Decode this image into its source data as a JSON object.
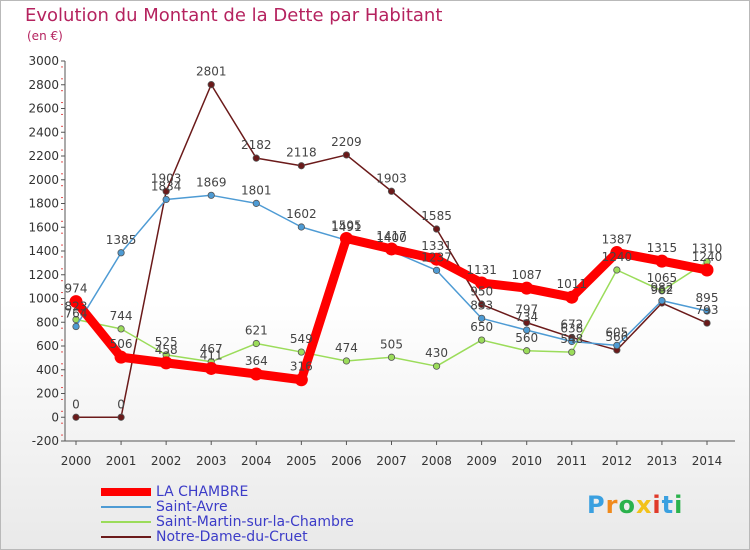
{
  "chart_data": {
    "type": "line",
    "title": "Evolution du Montant de la Dette par Habitant",
    "unit_label": "(en €)",
    "xlabel": "",
    "ylabel": "",
    "ylim": [
      -200,
      3000
    ],
    "y_ticks": [
      -200,
      0,
      200,
      400,
      600,
      800,
      1000,
      1200,
      1400,
      1600,
      1800,
      2000,
      2200,
      2400,
      2600,
      2800,
      3000
    ],
    "categories": [
      "2000",
      "2001",
      "2002",
      "2003",
      "2004",
      "2005",
      "2006",
      "2007",
      "2008",
      "2009",
      "2010",
      "2011",
      "2012",
      "2013",
      "2014"
    ],
    "grid": false,
    "legend_position": "bottom-left",
    "series": [
      {
        "name": "LA CHAMBRE",
        "color": "#ff0000",
        "thick": true,
        "values": [
          974,
          506,
          458,
          411,
          364,
          316,
          1505,
          1417,
          1331,
          1131,
          1087,
          1011,
          1387,
          1315,
          1240
        ],
        "labels": [
          "974",
          "506",
          "458",
          "411",
          "364",
          "316",
          "1505",
          "1417",
          "1331",
          "1131",
          "1087",
          "1011",
          "1387",
          "1315",
          "1240"
        ]
      },
      {
        "name": "Saint-Avre",
        "color": "#4e9bd4",
        "thick": false,
        "values": [
          764,
          1385,
          1834,
          1869,
          1801,
          1602,
          1491,
          1400,
          1237,
          833,
          734,
          638,
          605,
          982,
          895
        ],
        "labels": [
          "764",
          "1385",
          "1834",
          "1869",
          "1801",
          "1602",
          "1491",
          "1400",
          "1237",
          "833",
          "734",
          "638",
          "605",
          "982",
          "895"
        ]
      },
      {
        "name": "Saint-Martin-sur-la-Chambre",
        "color": "#9bdc5a",
        "thick": false,
        "values": [
          823,
          744,
          525,
          467,
          621,
          549,
          474,
          505,
          430,
          650,
          560,
          548,
          1240,
          1065,
          1310
        ],
        "labels": [
          "823",
          "744",
          "525",
          "467",
          "621",
          "549",
          "474",
          "505",
          "430",
          "650",
          "560",
          "548",
          "1240",
          "1065",
          "1310"
        ]
      },
      {
        "name": "Notre-Dame-du-Cruet",
        "color": "#6b1a1a",
        "thick": false,
        "values": [
          0,
          0,
          1903,
          2801,
          2182,
          2118,
          2209,
          1903,
          1585,
          950,
          797,
          672,
          566,
          962,
          793
        ],
        "labels": [
          "0",
          "0",
          "1903",
          "2801",
          "2182",
          "2118",
          "2209",
          "1903",
          "1585",
          "950",
          "797",
          "672",
          "566",
          "962",
          "793"
        ]
      }
    ]
  },
  "legend": [
    {
      "label": "LA CHAMBRE",
      "color": "#ff0000"
    },
    {
      "label": "Saint-Avre",
      "color": "#4e9bd4"
    },
    {
      "label": "Saint-Martin-sur-la-Chambre",
      "color": "#9bdc5a"
    },
    {
      "label": "Notre-Dame-du-Cruet",
      "color": "#6b1a1a"
    }
  ],
  "brand": {
    "letters": [
      "P",
      "r",
      "o",
      "x",
      "i",
      "t",
      "i"
    ],
    "colors": [
      "#3aa0e0",
      "#f08a1c",
      "#2bb24c",
      "#f2c21a",
      "#e03a2a",
      "#3aa0e0",
      "#2bb24c"
    ]
  }
}
